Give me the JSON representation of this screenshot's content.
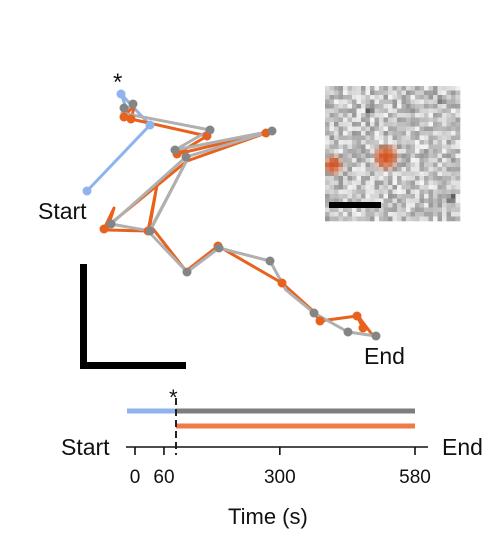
{
  "labels": {
    "start": "Start",
    "end": "End",
    "asterisk": "*",
    "timeline_start": "Start",
    "timeline_end": "End",
    "timeline_asterisk": "*",
    "xlabel": "Time (s)"
  },
  "ticks": [
    "0",
    "60",
    "300",
    "580"
  ],
  "colors": {
    "blue": "#8fb3ec",
    "orange": "#e8621e",
    "gray": "#8a8a8a",
    "lightgray": "#b0b0b0",
    "black": "#000000"
  },
  "timeline": {
    "tick_values": [
      0,
      60,
      300,
      580
    ],
    "switch_time": 50,
    "max_time": 580
  },
  "inset": {
    "seed": 17
  }
}
